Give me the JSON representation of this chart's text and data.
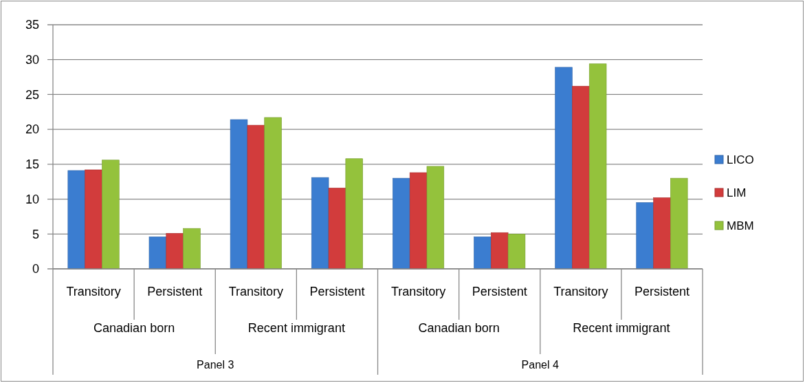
{
  "chart_data": {
    "type": "bar",
    "categories": [
      "Transitory",
      "Persistent",
      "Transitory",
      "Persistent",
      "Transitory",
      "Persistent",
      "Transitory",
      "Persistent"
    ],
    "series": [
      {
        "name": "LICO",
        "color": "#3b7dd0",
        "values": [
          14.1,
          4.6,
          21.4,
          13.1,
          13.0,
          4.6,
          28.9,
          9.5
        ]
      },
      {
        "name": "LIM",
        "color": "#d23c3c",
        "values": [
          14.2,
          5.1,
          20.6,
          11.6,
          13.8,
          5.2,
          26.2,
          10.2
        ]
      },
      {
        "name": "MBM",
        "color": "#94c23c",
        "values": [
          15.6,
          5.8,
          21.7,
          15.8,
          14.7,
          5.0,
          29.4,
          13.0
        ]
      }
    ],
    "annotations": [
      "Canadian born",
      "Recent immigrant",
      "Canadian born",
      "Recent immigrant",
      "Panel 3",
      "Panel 4"
    ],
    "ylim": [
      0,
      35
    ],
    "yticks": [
      0,
      5,
      10,
      15,
      20,
      25,
      30,
      35
    ],
    "grid": "y",
    "legend": "right"
  }
}
